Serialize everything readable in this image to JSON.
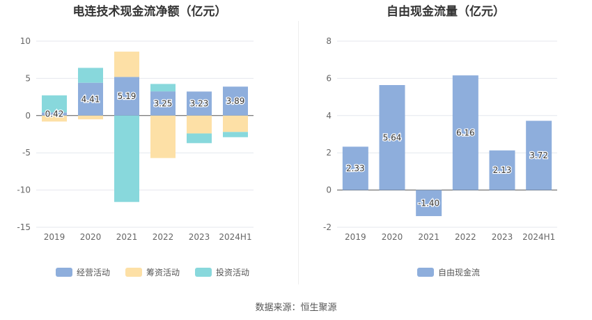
{
  "colors": {
    "operating": "#8eaedc",
    "financing": "#fde0a6",
    "investing": "#88d8dc",
    "free_cash_flow": "#8eaedc",
    "axis_text": "#666666",
    "grid": "#e4e7ee"
  },
  "source_note": "数据来源：恒生聚源",
  "chart_data": [
    {
      "type": "bar",
      "stacked": true,
      "title": "电连技术现金流净额（亿元）",
      "categories": [
        "2019",
        "2020",
        "2021",
        "2022",
        "2023",
        "2024H1"
      ],
      "ylim": [
        -15,
        10
      ],
      "yticks": [
        10,
        5,
        0,
        -5,
        -10,
        -15
      ],
      "grid": true,
      "legend_position": "bottom",
      "series": [
        {
          "name": "经营活动",
          "values": [
            0.42,
            4.41,
            5.19,
            3.25,
            3.23,
            3.89
          ],
          "labels": [
            "0.42",
            "4.41",
            "5.19",
            "3.25",
            "3.23",
            "3.89"
          ]
        },
        {
          "name": "筹资活动",
          "values": [
            -0.8,
            -0.5,
            3.4,
            -5.7,
            -2.4,
            -2.2
          ]
        },
        {
          "name": "投资活动",
          "values": [
            2.3,
            2.0,
            -11.6,
            1.0,
            -1.3,
            -0.7
          ]
        }
      ]
    },
    {
      "type": "bar",
      "title": "自由现金流量（亿元）",
      "categories": [
        "2019",
        "2020",
        "2021",
        "2022",
        "2023",
        "2024H1"
      ],
      "ylim": [
        -2,
        8
      ],
      "yticks": [
        8,
        6,
        4,
        2,
        0,
        -2
      ],
      "grid": true,
      "legend_position": "bottom",
      "series": [
        {
          "name": "自由现金流",
          "values": [
            2.33,
            5.64,
            -1.4,
            6.16,
            2.13,
            3.72
          ],
          "labels": [
            "2.33",
            "5.64",
            "-1.40",
            "6.16",
            "2.13",
            "3.72"
          ]
        }
      ]
    }
  ]
}
